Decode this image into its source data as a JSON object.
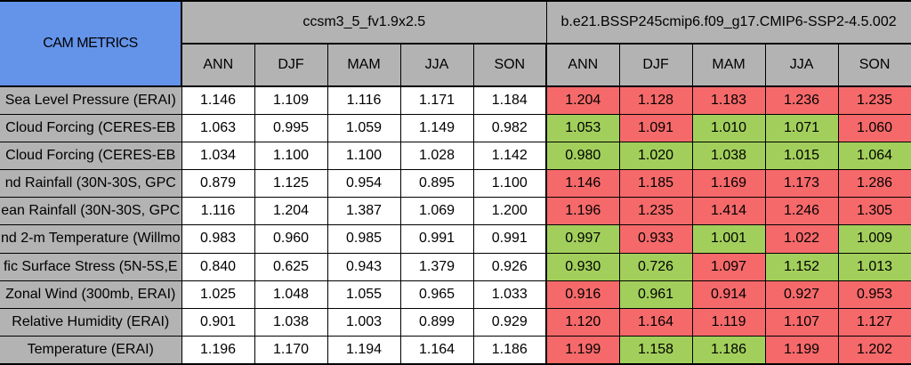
{
  "chart_data": {
    "type": "table",
    "title": "CAM METRICS",
    "colors": {
      "header_blue": "#6494EA",
      "header_gray": "#B3B3B3",
      "cell_white": "#FFFFFF",
      "better_green": "#A2CF5B",
      "worse_red": "#F5696A",
      "border_black": "#000000"
    },
    "groups": [
      {
        "name": "ccsm3_5_fv1.9x2.5",
        "seasons": [
          "ANN",
          "DJF",
          "MAM",
          "JJA",
          "SON"
        ]
      },
      {
        "name": "b.e21.BSSP245cmip6.f09_g17.CMIP6-SSP2-4.5.002",
        "seasons": [
          "ANN",
          "DJF",
          "MAM",
          "JJA",
          "SON"
        ]
      }
    ],
    "rows": [
      {
        "metric": "Sea Level Pressure (ERAI)",
        "baseline": [
          "1.146",
          "1.109",
          "1.116",
          "1.171",
          "1.184"
        ],
        "test": [
          "1.204",
          "1.128",
          "1.183",
          "1.236",
          "1.235"
        ],
        "test_colors": [
          "red",
          "red",
          "red",
          "red",
          "red"
        ]
      },
      {
        "metric": "Cloud Forcing (CERES-EB",
        "baseline": [
          "1.063",
          "0.995",
          "1.059",
          "1.149",
          "0.982"
        ],
        "test": [
          "1.053",
          "1.091",
          "1.010",
          "1.071",
          "1.060"
        ],
        "test_colors": [
          "green",
          "red",
          "green",
          "green",
          "red"
        ]
      },
      {
        "metric": "Cloud Forcing (CERES-EB",
        "baseline": [
          "1.034",
          "1.100",
          "1.100",
          "1.028",
          "1.142"
        ],
        "test": [
          "0.980",
          "1.020",
          "1.038",
          "1.015",
          "1.064"
        ],
        "test_colors": [
          "green",
          "green",
          "green",
          "green",
          "green"
        ]
      },
      {
        "metric": "nd Rainfall (30N-30S, GPC",
        "baseline": [
          "0.879",
          "1.125",
          "0.954",
          "0.895",
          "1.100"
        ],
        "test": [
          "1.146",
          "1.185",
          "1.169",
          "1.173",
          "1.286"
        ],
        "test_colors": [
          "red",
          "red",
          "red",
          "red",
          "red"
        ]
      },
      {
        "metric": "ean Rainfall (30N-30S, GPC",
        "baseline": [
          "1.116",
          "1.204",
          "1.387",
          "1.069",
          "1.200"
        ],
        "test": [
          "1.196",
          "1.235",
          "1.414",
          "1.246",
          "1.305"
        ],
        "test_colors": [
          "red",
          "red",
          "red",
          "red",
          "red"
        ]
      },
      {
        "metric": "nd 2-m Temperature (Willmo",
        "baseline": [
          "0.983",
          "0.960",
          "0.985",
          "0.991",
          "0.991"
        ],
        "test": [
          "0.997",
          "0.933",
          "1.001",
          "1.022",
          "1.009"
        ],
        "test_colors": [
          "green",
          "red",
          "green",
          "red",
          "green"
        ]
      },
      {
        "metric": "fic Surface Stress (5N-5S,E",
        "baseline": [
          "0.840",
          "0.625",
          "0.943",
          "1.379",
          "0.926"
        ],
        "test": [
          "0.930",
          "0.726",
          "1.097",
          "1.152",
          "1.013"
        ],
        "test_colors": [
          "green",
          "green",
          "red",
          "green",
          "green"
        ]
      },
      {
        "metric": "Zonal Wind (300mb, ERAI)",
        "baseline": [
          "1.025",
          "1.048",
          "1.055",
          "0.965",
          "1.033"
        ],
        "test": [
          "0.916",
          "0.961",
          "0.914",
          "0.927",
          "0.953"
        ],
        "test_colors": [
          "red",
          "green",
          "red",
          "red",
          "red"
        ]
      },
      {
        "metric": "Relative Humidity (ERAI)",
        "baseline": [
          "0.901",
          "1.038",
          "1.003",
          "0.899",
          "0.929"
        ],
        "test": [
          "1.120",
          "1.164",
          "1.119",
          "1.107",
          "1.127"
        ],
        "test_colors": [
          "red",
          "red",
          "red",
          "red",
          "red"
        ]
      },
      {
        "metric": "Temperature (ERAI)",
        "baseline": [
          "1.196",
          "1.170",
          "1.194",
          "1.164",
          "1.186"
        ],
        "test": [
          "1.199",
          "1.158",
          "1.186",
          "1.199",
          "1.202"
        ],
        "test_colors": [
          "red",
          "green",
          "green",
          "red",
          "red"
        ]
      }
    ]
  }
}
